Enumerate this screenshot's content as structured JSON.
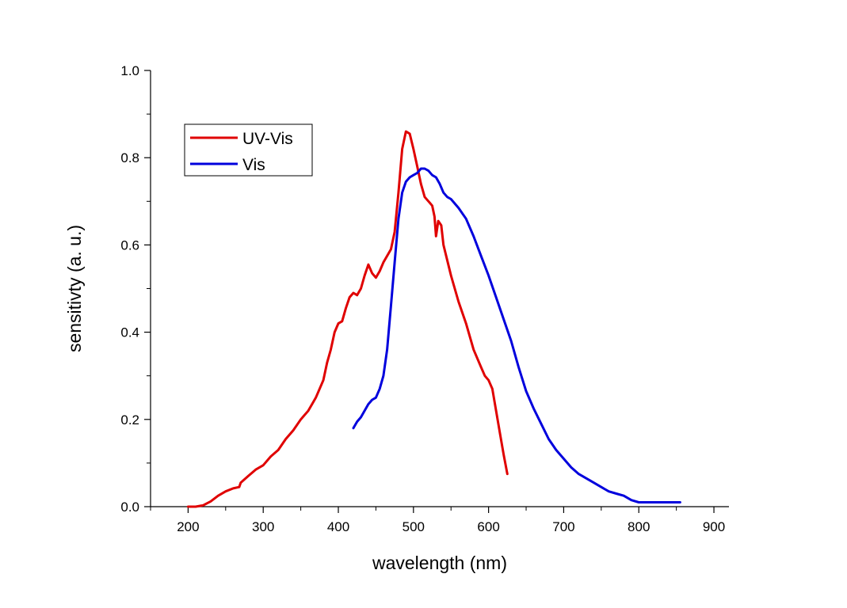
{
  "chart_data": {
    "type": "line",
    "title": "",
    "xlabel": "wavelength (nm)",
    "ylabel": "sensitivty (a. u.)",
    "xlim": [
      150,
      920
    ],
    "ylim": [
      0,
      1.0
    ],
    "xticks": [
      200,
      300,
      400,
      500,
      600,
      700,
      800,
      900
    ],
    "xtick_labels": [
      "200",
      "300",
      "400",
      "500",
      "600",
      "700",
      "800",
      "900"
    ],
    "yticks": [
      0,
      0.2,
      0.4,
      0.6,
      0.8,
      1.0
    ],
    "ytick_labels": [
      "0.0",
      "0.2",
      "0.4",
      "0.6",
      "0.8",
      "1.0"
    ],
    "grid": false,
    "legend_position": "top-left",
    "series": [
      {
        "name": "UV-Vis",
        "color": "#e00000",
        "x": [
          200,
          210,
          220,
          230,
          240,
          250,
          260,
          268,
          270,
          280,
          290,
          300,
          310,
          320,
          330,
          340,
          350,
          360,
          370,
          380,
          385,
          390,
          395,
          400,
          405,
          410,
          415,
          420,
          425,
          430,
          435,
          440,
          445,
          450,
          455,
          460,
          465,
          470,
          475,
          480,
          485,
          490,
          495,
          500,
          505,
          510,
          515,
          520,
          525,
          528,
          530,
          533,
          537,
          540,
          550,
          560,
          570,
          580,
          590,
          595,
          600,
          605,
          610,
          615,
          620,
          625
        ],
        "y": [
          0.0,
          0.0,
          0.003,
          0.012,
          0.025,
          0.035,
          0.042,
          0.045,
          0.055,
          0.07,
          0.085,
          0.095,
          0.115,
          0.13,
          0.155,
          0.175,
          0.2,
          0.22,
          0.25,
          0.29,
          0.33,
          0.36,
          0.4,
          0.42,
          0.425,
          0.455,
          0.48,
          0.49,
          0.485,
          0.5,
          0.53,
          0.555,
          0.535,
          0.525,
          0.54,
          0.56,
          0.575,
          0.59,
          0.63,
          0.72,
          0.82,
          0.86,
          0.855,
          0.82,
          0.78,
          0.74,
          0.71,
          0.7,
          0.69,
          0.665,
          0.62,
          0.655,
          0.645,
          0.6,
          0.53,
          0.47,
          0.42,
          0.36,
          0.32,
          0.3,
          0.29,
          0.27,
          0.22,
          0.17,
          0.12,
          0.075
        ]
      },
      {
        "name": "Vis",
        "color": "#0000dd",
        "x": [
          420,
          425,
          430,
          435,
          440,
          445,
          450,
          455,
          460,
          465,
          470,
          475,
          480,
          485,
          490,
          495,
          500,
          505,
          510,
          515,
          520,
          525,
          530,
          535,
          540,
          545,
          550,
          555,
          560,
          570,
          580,
          590,
          600,
          610,
          620,
          630,
          640,
          650,
          660,
          670,
          680,
          690,
          700,
          710,
          720,
          730,
          740,
          750,
          760,
          770,
          780,
          790,
          800,
          810,
          820,
          830,
          840,
          845,
          850,
          855
        ],
        "y": [
          0.18,
          0.195,
          0.205,
          0.22,
          0.235,
          0.245,
          0.25,
          0.27,
          0.3,
          0.36,
          0.46,
          0.56,
          0.66,
          0.72,
          0.745,
          0.755,
          0.76,
          0.765,
          0.775,
          0.775,
          0.77,
          0.76,
          0.755,
          0.74,
          0.72,
          0.71,
          0.705,
          0.695,
          0.685,
          0.66,
          0.62,
          0.575,
          0.53,
          0.48,
          0.43,
          0.38,
          0.32,
          0.265,
          0.225,
          0.19,
          0.155,
          0.13,
          0.11,
          0.09,
          0.075,
          0.065,
          0.055,
          0.045,
          0.035,
          0.03,
          0.025,
          0.015,
          0.01,
          0.01,
          0.01,
          0.01,
          0.01,
          0.01,
          0.01,
          0.01
        ]
      }
    ]
  }
}
